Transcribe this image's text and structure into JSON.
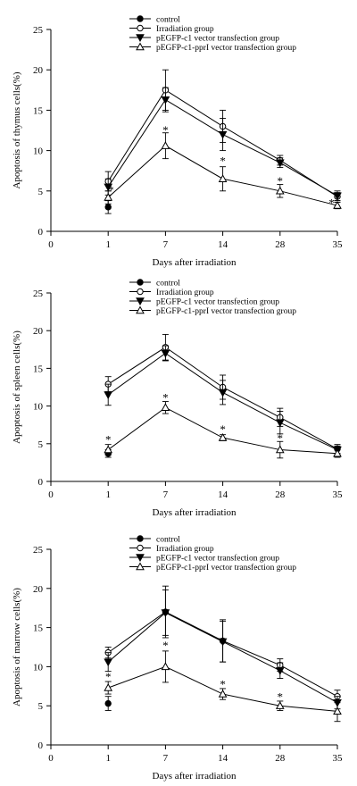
{
  "figure": {
    "legend": [
      "control",
      "Irradiation group",
      "pEGFP-c1 vector transfection group",
      "pEGFP-c1-pprI vector transfection group"
    ]
  },
  "chart_data": [
    {
      "type": "line",
      "title": "",
      "ylabel": "Apoptosis of  thymus cells(%)",
      "xlabel": "Days after irradiation",
      "xlim": [
        0,
        35
      ],
      "ylim": [
        0,
        25
      ],
      "x_ticks": [
        0,
        1,
        7,
        14,
        28,
        35
      ],
      "y_ticks": [
        0,
        5,
        10,
        15,
        20,
        25
      ],
      "legend_position": "top-left",
      "grid": false,
      "series": [
        {
          "name": "control",
          "marker": "filled-circle",
          "x": [
            1
          ],
          "y": [
            3.0
          ],
          "err": [
            0.8
          ]
        },
        {
          "name": "Irradiation group",
          "marker": "open-circle",
          "x": [
            1,
            7,
            14,
            28,
            35
          ],
          "y": [
            6.2,
            17.5,
            13.0,
            8.8,
            4.3
          ],
          "err": [
            1.2,
            2.5,
            2.0,
            0.6,
            0.5
          ]
        },
        {
          "name": "pEGFP-c1 vector transfection group",
          "marker": "filled-triangle-down",
          "x": [
            1,
            7,
            14,
            28,
            35
          ],
          "y": [
            5.5,
            16.3,
            12.0,
            8.5,
            4.4
          ],
          "err": [
            1.0,
            1.5,
            2.0,
            0.6,
            0.6
          ]
        },
        {
          "name": "pEGFP-c1-pprI vector transfection group",
          "marker": "open-triangle-up",
          "x": [
            1,
            7,
            14,
            28,
            35
          ],
          "y": [
            4.2,
            10.6,
            6.5,
            5.0,
            3.2
          ],
          "err": [
            0.8,
            1.6,
            1.5,
            0.8,
            0.4
          ]
        }
      ],
      "annotations": [
        {
          "text": "*",
          "x": 1.3,
          "y": 5.2
        },
        {
          "text": "*",
          "x": 7,
          "y": 12.6
        },
        {
          "text": "*",
          "x": 14,
          "y": 8.8
        },
        {
          "text": "*",
          "x": 28,
          "y": 6.3
        },
        {
          "text": "*",
          "x": 34.3,
          "y": 3.6
        }
      ]
    },
    {
      "type": "line",
      "title": "",
      "ylabel": "Apoptosis of spleen cells(%)",
      "xlabel": "Days after irradiation",
      "xlim": [
        0,
        35
      ],
      "ylim": [
        0,
        25
      ],
      "x_ticks": [
        0,
        1,
        7,
        14,
        28,
        35
      ],
      "y_ticks": [
        0,
        5,
        10,
        15,
        20,
        25
      ],
      "legend_position": "top-left",
      "grid": false,
      "series": [
        {
          "name": "control",
          "marker": "filled-circle",
          "x": [
            1
          ],
          "y": [
            3.7
          ],
          "err": [
            0.5
          ]
        },
        {
          "name": "Irradiation group",
          "marker": "open-circle",
          "x": [
            1,
            7,
            14,
            28,
            35
          ],
          "y": [
            12.9,
            17.8,
            12.5,
            8.5,
            4.3
          ],
          "err": [
            1.0,
            1.7,
            1.6,
            1.2,
            0.6
          ]
        },
        {
          "name": "pEGFP-c1 vector transfection group",
          "marker": "filled-triangle-down",
          "x": [
            1,
            7,
            14,
            28,
            35
          ],
          "y": [
            11.5,
            17.0,
            11.8,
            7.8,
            4.2
          ],
          "err": [
            1.4,
            1.0,
            1.6,
            1.5,
            0.5
          ]
        },
        {
          "name": "pEGFP-c1-pprI vector transfection group",
          "marker": "open-triangle-up",
          "x": [
            1,
            7,
            14,
            28,
            35
          ],
          "y": [
            4.2,
            9.8,
            5.8,
            4.2,
            3.7
          ],
          "err": [
            0.7,
            0.8,
            0.4,
            1.1,
            0.5
          ]
        }
      ],
      "annotations": [
        {
          "text": "*",
          "x": 1,
          "y": 5.6
        },
        {
          "text": "*",
          "x": 7,
          "y": 11.2
        },
        {
          "text": "*",
          "x": 14,
          "y": 7.0
        },
        {
          "text": "*",
          "x": 28,
          "y": 5.8
        }
      ]
    },
    {
      "type": "line",
      "title": "",
      "ylabel": "Apoptosis of marrow cells(%)",
      "xlabel": "Days after irradiation",
      "xlim": [
        0,
        35
      ],
      "ylim": [
        0,
        25
      ],
      "x_ticks": [
        0,
        1,
        7,
        14,
        28,
        35
      ],
      "y_ticks": [
        0,
        5,
        10,
        15,
        20,
        25
      ],
      "legend_position": "top-left",
      "grid": false,
      "series": [
        {
          "name": "control",
          "marker": "filled-circle",
          "x": [
            1
          ],
          "y": [
            5.3
          ],
          "err": [
            0.9
          ]
        },
        {
          "name": "Irradiation group",
          "marker": "open-circle",
          "x": [
            1,
            7,
            14,
            28,
            35
          ],
          "y": [
            11.8,
            17.0,
            13.3,
            10.2,
            6.2
          ],
          "err": [
            0.7,
            3.3,
            2.7,
            0.8,
            0.8
          ]
        },
        {
          "name": "pEGFP-c1 vector transfection group",
          "marker": "filled-triangle-down",
          "x": [
            1,
            7,
            14,
            28,
            35
          ],
          "y": [
            10.6,
            16.9,
            13.2,
            9.5,
            5.4
          ],
          "err": [
            1.2,
            2.9,
            2.6,
            1.0,
            0.8
          ]
        },
        {
          "name": "pEGFP-c1-pprI vector transfection group",
          "marker": "open-triangle-up",
          "x": [
            1,
            7,
            14,
            28,
            35
          ],
          "y": [
            7.3,
            10.0,
            6.5,
            5.0,
            4.3
          ],
          "err": [
            0.8,
            2.0,
            0.7,
            0.6,
            1.3
          ]
        }
      ],
      "annotations": [
        {
          "text": "*",
          "x": 1,
          "y": 8.8
        },
        {
          "text": "*",
          "x": 7,
          "y": 12.8
        },
        {
          "text": "*",
          "x": 14,
          "y": 7.8
        },
        {
          "text": "*",
          "x": 28,
          "y": 6.2
        }
      ]
    }
  ]
}
